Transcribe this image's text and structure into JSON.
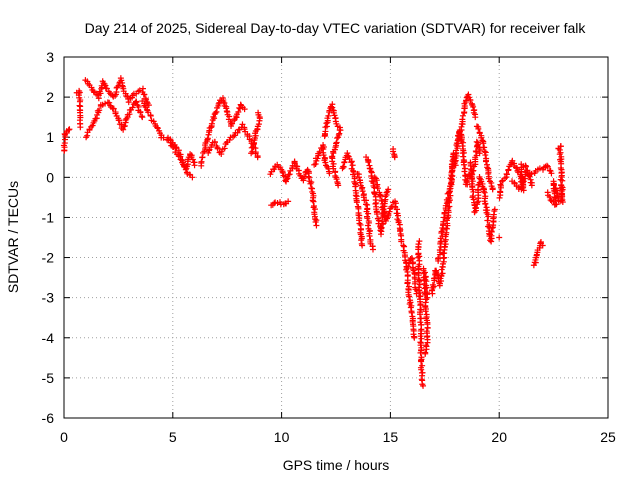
{
  "chart_data": {
    "type": "scatter",
    "title": "Day 214 of 2025, Sidereal Day-to-day VTEC variation (SDTVAR) for receiver falk",
    "xlabel": "GPS time / hours",
    "ylabel": "SDTVAR / TECUs",
    "xlim": [
      0,
      25
    ],
    "ylim": [
      -6,
      3
    ],
    "xticks": [
      "0",
      "5",
      "10",
      "15",
      "20",
      "25"
    ],
    "yticks": [
      "3",
      "2",
      "1",
      "0",
      "-1",
      "-2",
      "-3",
      "-4",
      "-5",
      "-6"
    ],
    "grid": true,
    "marker": "+",
    "color": "#ff0000",
    "series": [
      {
        "name": "SDTVAR",
        "segments": [
          [
            [
              0.0,
              0.65
            ],
            [
              0.05,
              1.1
            ],
            [
              0.15,
              1.15
            ],
            [
              0.25,
              1.2
            ]
          ],
          [
            [
              0.6,
              2.1
            ],
            [
              0.7,
              2.15
            ],
            [
              0.75,
              1.25
            ]
          ],
          [
            [
              1.0,
              2.4
            ],
            [
              1.3,
              2.2
            ],
            [
              1.6,
              2.0
            ],
            [
              1.8,
              2.4
            ],
            [
              2.0,
              2.2
            ],
            [
              2.3,
              2.0
            ],
            [
              2.6,
              2.45
            ],
            [
              2.8,
              2.1
            ],
            [
              3.0,
              1.9
            ],
            [
              3.3,
              2.1
            ],
            [
              3.6,
              2.2
            ],
            [
              3.9,
              1.8
            ]
          ],
          [
            [
              1.0,
              1.0
            ],
            [
              1.4,
              1.4
            ],
            [
              1.7,
              1.8
            ],
            [
              2.0,
              1.9
            ],
            [
              2.4,
              1.6
            ],
            [
              2.7,
              1.2
            ],
            [
              3.0,
              1.6
            ],
            [
              3.3,
              1.9
            ],
            [
              3.6,
              1.5
            ]
          ],
          [
            [
              3.6,
              1.9
            ],
            [
              3.9,
              1.6
            ],
            [
              4.2,
              1.3
            ],
            [
              4.5,
              1.0
            ],
            [
              4.8,
              0.9
            ],
            [
              5.1,
              0.7
            ],
            [
              5.3,
              0.5
            ],
            [
              5.5,
              0.3
            ],
            [
              5.7,
              0.1
            ],
            [
              5.9,
              0.0
            ]
          ],
          [
            [
              4.8,
              1.0
            ],
            [
              5.1,
              0.8
            ],
            [
              5.3,
              0.6
            ],
            [
              5.6,
              0.2
            ],
            [
              5.8,
              0.6
            ],
            [
              6.0,
              0.3
            ]
          ],
          [
            [
              6.3,
              0.3
            ],
            [
              6.5,
              0.8
            ],
            [
              6.7,
              1.2
            ],
            [
              6.9,
              1.5
            ],
            [
              7.1,
              1.8
            ],
            [
              7.3,
              2.0
            ],
            [
              7.5,
              1.6
            ],
            [
              7.7,
              1.3
            ],
            [
              7.9,
              1.5
            ],
            [
              8.1,
              1.8
            ],
            [
              8.3,
              1.7
            ]
          ],
          [
            [
              6.6,
              0.6
            ],
            [
              6.9,
              0.9
            ],
            [
              7.2,
              0.6
            ],
            [
              7.5,
              0.9
            ],
            [
              7.9,
              1.1
            ],
            [
              8.2,
              1.3
            ],
            [
              8.5,
              1.0
            ],
            [
              8.7,
              0.8
            ],
            [
              8.9,
              0.5
            ]
          ],
          [
            [
              8.9,
              1.6
            ],
            [
              9.0,
              1.5
            ],
            [
              8.6,
              0.6
            ]
          ],
          [
            [
              9.5,
              -0.7
            ],
            [
              9.7,
              -0.6
            ],
            [
              9.9,
              -0.65
            ],
            [
              10.1,
              -0.7
            ],
            [
              10.3,
              -0.6
            ]
          ],
          [
            [
              9.5,
              0.1
            ],
            [
              9.8,
              0.3
            ],
            [
              10.0,
              0.2
            ],
            [
              10.2,
              -0.1
            ],
            [
              10.4,
              0.1
            ],
            [
              10.6,
              0.4
            ],
            [
              10.8,
              0.1
            ],
            [
              11.0,
              -0.1
            ],
            [
              11.2,
              0.2
            ],
            [
              11.4,
              -0.3
            ],
            [
              11.5,
              -0.8
            ],
            [
              11.6,
              -1.2
            ]
          ],
          [
            [
              11.5,
              0.3
            ],
            [
              11.7,
              0.6
            ],
            [
              11.9,
              0.8
            ],
            [
              12.0,
              0.4
            ],
            [
              12.2,
              0.1
            ]
          ],
          [
            [
              12.0,
              1.0
            ],
            [
              12.1,
              1.5
            ],
            [
              12.3,
              1.8
            ],
            [
              12.5,
              1.4
            ],
            [
              12.7,
              1.2
            ],
            [
              12.5,
              0.8
            ],
            [
              12.3,
              0.5
            ],
            [
              12.5,
              0.0
            ],
            [
              12.6,
              -0.2
            ]
          ],
          [
            [
              12.8,
              0.2
            ],
            [
              13.0,
              0.6
            ],
            [
              13.2,
              0.4
            ],
            [
              13.4,
              -0.2
            ],
            [
              13.5,
              -0.7
            ],
            [
              13.6,
              -1.2
            ],
            [
              13.7,
              -1.7
            ]
          ],
          [
            [
              13.5,
              0.1
            ],
            [
              13.7,
              -0.3
            ],
            [
              13.9,
              -0.7
            ],
            [
              14.0,
              -1.2
            ],
            [
              14.1,
              -1.6
            ],
            [
              14.2,
              -1.8
            ]
          ],
          [
            [
              13.9,
              0.5
            ],
            [
              14.1,
              0.2
            ],
            [
              14.3,
              -0.5
            ],
            [
              14.4,
              -1.0
            ],
            [
              14.6,
              -1.4
            ],
            [
              14.7,
              -0.7
            ],
            [
              14.9,
              -0.3
            ]
          ],
          [
            [
              14.3,
              0.0
            ],
            [
              14.5,
              -0.4
            ],
            [
              14.8,
              -1.1
            ],
            [
              15.0,
              -0.8
            ],
            [
              15.2,
              -0.6
            ],
            [
              15.4,
              -1.2
            ],
            [
              15.5,
              -1.6
            ]
          ],
          [
            [
              15.1,
              0.7
            ],
            [
              15.2,
              0.5
            ]
          ],
          [
            [
              15.6,
              -1.7
            ],
            [
              15.7,
              -2.1
            ],
            [
              15.8,
              -2.6
            ],
            [
              15.9,
              -3.1
            ],
            [
              16.0,
              -3.5
            ],
            [
              16.1,
              -4.0
            ]
          ],
          [
            [
              15.8,
              -2.2
            ],
            [
              16.0,
              -2.0
            ],
            [
              16.1,
              -2.5
            ],
            [
              16.2,
              -2.9
            ]
          ],
          [
            [
              16.3,
              -1.6
            ],
            [
              16.3,
              -2.2
            ],
            [
              16.35,
              -3.0
            ],
            [
              16.4,
              -3.6
            ],
            [
              16.4,
              -4.4
            ],
            [
              16.45,
              -4.9
            ],
            [
              16.5,
              -5.2
            ]
          ],
          [
            [
              16.5,
              -2.3
            ],
            [
              16.6,
              -2.8
            ],
            [
              16.7,
              -4.0
            ],
            [
              16.6,
              -4.4
            ]
          ],
          [
            [
              16.6,
              -2.4
            ],
            [
              16.7,
              -3.0
            ]
          ],
          [
            [
              16.9,
              -2.9
            ],
            [
              17.0,
              -2.6
            ],
            [
              17.1,
              -2.3
            ],
            [
              17.3,
              -2.7
            ],
            [
              17.4,
              -2.2
            ],
            [
              17.5,
              -1.7
            ],
            [
              17.6,
              -1.2
            ],
            [
              17.7,
              -0.6
            ],
            [
              17.8,
              0.0
            ],
            [
              17.9,
              0.5
            ],
            [
              18.0,
              0.3
            ]
          ],
          [
            [
              17.2,
              -2.1
            ],
            [
              17.4,
              -1.3
            ],
            [
              17.6,
              -0.6
            ],
            [
              17.8,
              -0.1
            ],
            [
              17.9,
              0.6
            ]
          ],
          [
            [
              18.0,
              0.4
            ],
            [
              18.1,
              1.0
            ],
            [
              18.3,
              1.3
            ],
            [
              18.4,
              1.8
            ],
            [
              18.5,
              2.0
            ],
            [
              18.6,
              2.05
            ],
            [
              18.7,
              1.9
            ],
            [
              18.8,
              1.8
            ],
            [
              18.9,
              1.5
            ]
          ],
          [
            [
              18.1,
              0.8
            ],
            [
              18.2,
              1.2
            ],
            [
              18.3,
              0.9
            ],
            [
              18.4,
              0.3
            ],
            [
              18.5,
              -0.2
            ],
            [
              18.6,
              0.1
            ],
            [
              18.7,
              0.0
            ],
            [
              18.9,
              0.4
            ],
            [
              19.0,
              0.9
            ],
            [
              19.1,
              0.6
            ]
          ],
          [
            [
              18.7,
              0.4
            ],
            [
              18.8,
              -0.5
            ],
            [
              18.9,
              -0.9
            ],
            [
              19.0,
              -0.6
            ],
            [
              19.1,
              0.0
            ],
            [
              19.3,
              -0.3
            ],
            [
              19.4,
              -0.8
            ],
            [
              19.5,
              -1.1
            ],
            [
              19.6,
              -1.6
            ],
            [
              19.8,
              -0.8
            ]
          ],
          [
            [
              19.0,
              1.3
            ],
            [
              19.2,
              1.0
            ],
            [
              19.4,
              0.5
            ],
            [
              19.5,
              0.0
            ],
            [
              19.7,
              -0.3
            ]
          ],
          [
            [
              20.0,
              -1.5
            ]
          ],
          [
            [
              20.0,
              -0.5
            ],
            [
              20.1,
              -0.1
            ],
            [
              20.3,
              0.0
            ],
            [
              20.5,
              0.3
            ],
            [
              20.6,
              0.4
            ],
            [
              20.8,
              0.2
            ],
            [
              21.0,
              0.0
            ],
            [
              21.1,
              -0.3
            ],
            [
              21.0,
              0.3
            ],
            [
              21.2,
              0.3
            ],
            [
              21.4,
              0.0
            ],
            [
              21.5,
              -0.2
            ]
          ],
          [
            [
              20.6,
              -0.1
            ],
            [
              20.8,
              -0.2
            ],
            [
              21.0,
              -0.3
            ],
            [
              21.2,
              0.1
            ],
            [
              21.5,
              0.1
            ],
            [
              21.8,
              0.2
            ],
            [
              22.0,
              0.2
            ],
            [
              22.2,
              0.3
            ],
            [
              22.4,
              0.1
            ]
          ],
          [
            [
              21.6,
              -2.2
            ],
            [
              21.7,
              -2.0
            ],
            [
              21.8,
              -1.8
            ],
            [
              21.9,
              -1.6
            ],
            [
              22.0,
              -1.7
            ]
          ],
          [
            [
              22.2,
              -0.4
            ],
            [
              22.4,
              -0.6
            ],
            [
              22.6,
              -0.7
            ],
            [
              22.5,
              -0.1
            ],
            [
              22.6,
              -0.3
            ],
            [
              22.7,
              -0.5
            ],
            [
              22.8,
              -0.6
            ]
          ],
          [
            [
              22.7,
              0.7
            ],
            [
              22.8,
              0.8
            ],
            [
              22.9,
              -0.6
            ],
            [
              22.85,
              -0.2
            ]
          ]
        ]
      }
    ]
  }
}
